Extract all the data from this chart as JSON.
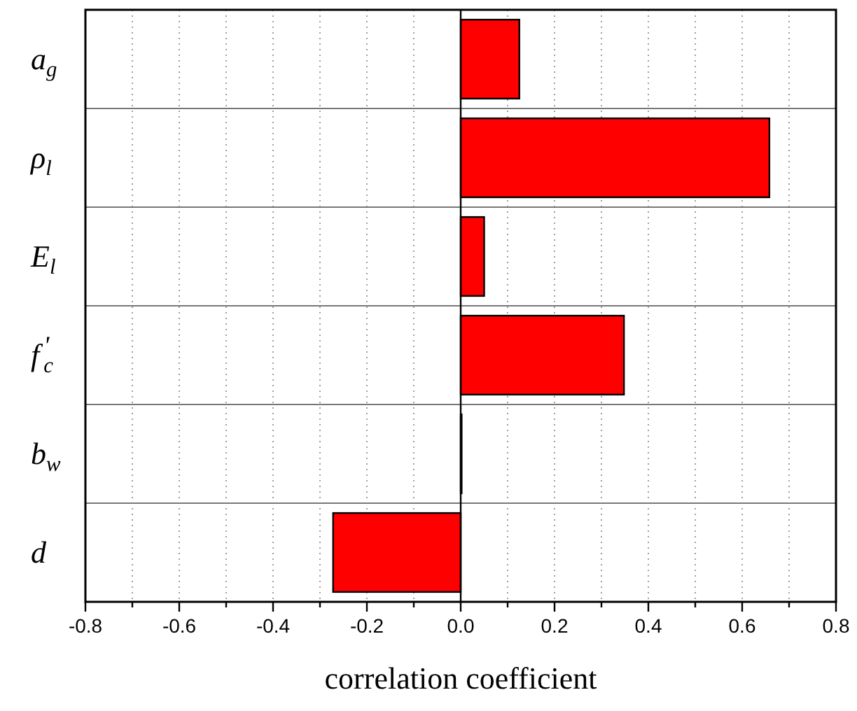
{
  "chart_data": {
    "type": "bar",
    "orientation": "horizontal",
    "xlabel": "correlation coefficient",
    "categories": [
      "a$_{g}$",
      "ρ$_{l}$",
      "E$_{l}$",
      "f$^{'}$$_{c}$",
      "b$_{w}$",
      "d"
    ],
    "values": [
      0.125,
      0.658,
      0.05,
      0.348,
      0.002,
      -0.272
    ],
    "color": "#ff0000",
    "xlim": [
      -0.8,
      0.8
    ],
    "xticks": [
      -0.8,
      {
        "value": -0.7,
        "label": null
      },
      -0.6,
      {
        "value": -0.5,
        "label": null
      },
      -0.4,
      {
        "value": -0.3,
        "label": null
      },
      -0.2,
      {
        "value": -0.1,
        "label": null
      },
      {
        "value": 0,
        "label": "0.0"
      },
      {
        "value": 0.1,
        "label": null
      },
      0.2,
      {
        "value": 0.3,
        "label": null
      },
      0.4,
      {
        "value": 0.5,
        "label": null
      },
      0.6,
      {
        "value": 0.7,
        "label": null
      },
      0.8
    ],
    "grid": true
  }
}
